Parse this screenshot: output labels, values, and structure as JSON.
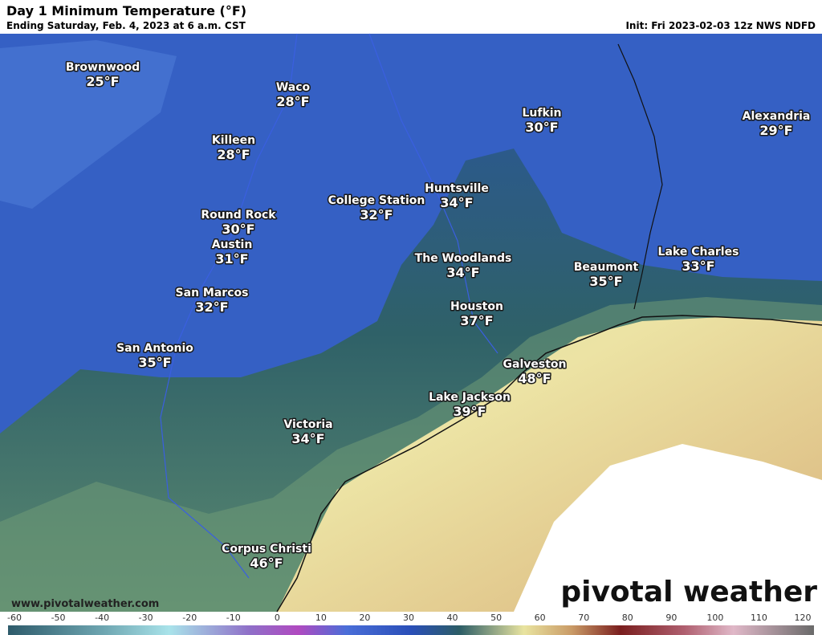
{
  "header": {
    "title": "Day 1 Minimum Temperature (°F)",
    "subtitle": "Ending Saturday, Feb. 4, 2023 at 6 a.m. CST",
    "init": "Init: Fri 2023-02-03 12z NWS NDFD"
  },
  "cities": [
    {
      "name": "Brownwood",
      "temp": "25°F"
    },
    {
      "name": "Waco",
      "temp": "28°F"
    },
    {
      "name": "Killeen",
      "temp": "28°F"
    },
    {
      "name": "Lufkin",
      "temp": "30°F"
    },
    {
      "name": "Alexandria",
      "temp": "29°F"
    },
    {
      "name": "Huntsville",
      "temp": "34°F"
    },
    {
      "name": "College Station",
      "temp": "32°F"
    },
    {
      "name": "Round Rock",
      "temp": "30°F"
    },
    {
      "name": "Austin",
      "temp": "31°F"
    },
    {
      "name": "The Woodlands",
      "temp": "34°F"
    },
    {
      "name": "Beaumont",
      "temp": "35°F"
    },
    {
      "name": "Lake Charles",
      "temp": "33°F"
    },
    {
      "name": "San Marcos",
      "temp": "32°F"
    },
    {
      "name": "Houston",
      "temp": "37°F"
    },
    {
      "name": "San Antonio",
      "temp": "35°F"
    },
    {
      "name": "Galveston",
      "temp": "48°F"
    },
    {
      "name": "Lake Jackson",
      "temp": "39°F"
    },
    {
      "name": "Victoria",
      "temp": "34°F"
    },
    {
      "name": "Corpus Christi",
      "temp": "46°F"
    }
  ],
  "footer": {
    "website": "www.pivotalweather.com",
    "logo": "pivotal weather"
  },
  "colorbar": {
    "ticks": [
      -60,
      -50,
      -40,
      -30,
      -20,
      -10,
      0,
      10,
      20,
      30,
      40,
      50,
      60,
      70,
      80,
      90,
      100,
      110,
      120
    ]
  }
}
